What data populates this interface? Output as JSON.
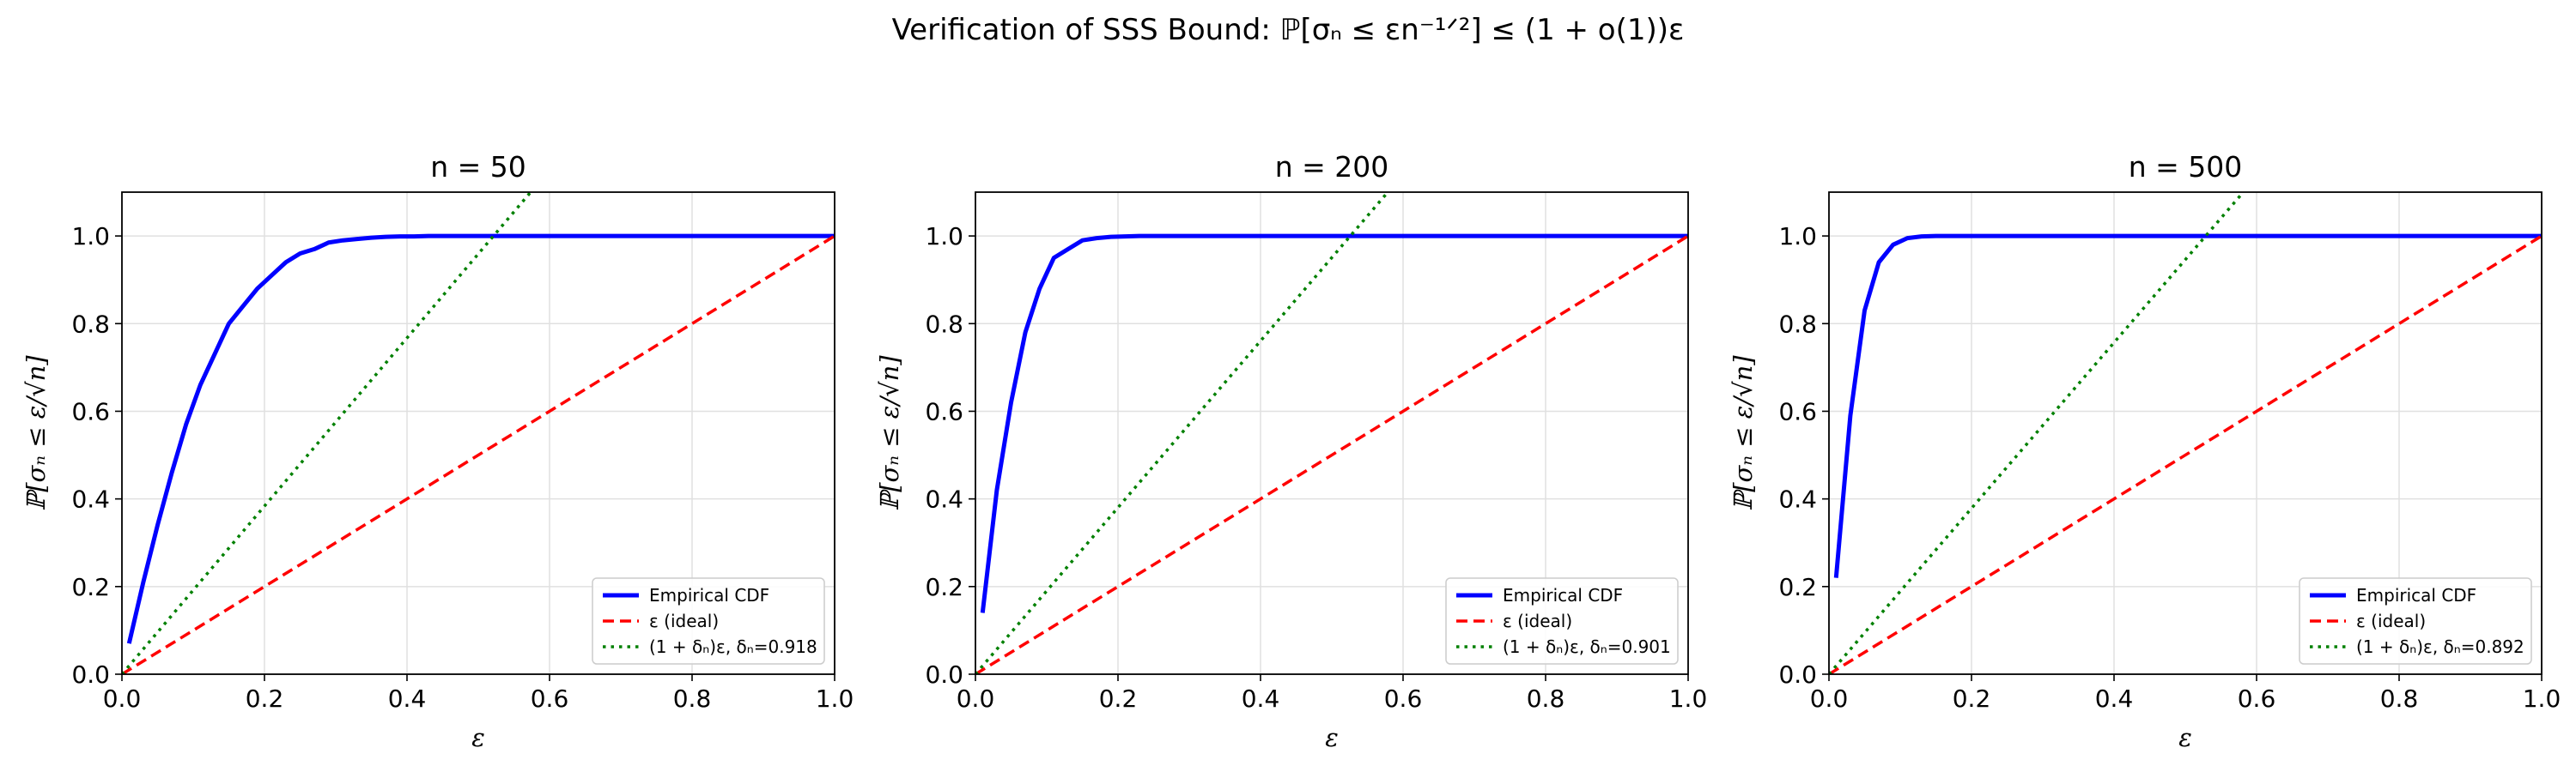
{
  "figure": {
    "title": "Verification of SSS Bound: ℙ[σₙ ≤ εn⁻¹ᐟ²] ≤ (1 + o(1))ε"
  },
  "colors": {
    "empirical": "#0000ff",
    "ideal": "#ff0000",
    "bound": "#008000",
    "grid": "#e0e0e0"
  },
  "chart_data": [
    {
      "type": "line",
      "title": "n = 50",
      "xlabel": "ε",
      "ylabel": "ℙ[σₙ ≤ ε/√n]",
      "xlim": [
        0.0,
        1.0
      ],
      "ylim": [
        0.0,
        1.1
      ],
      "xticks": [
        "0.0",
        "0.2",
        "0.4",
        "0.6",
        "0.8",
        "1.0"
      ],
      "yticks": [
        "0.0",
        "0.2",
        "0.4",
        "0.6",
        "0.8",
        "1.0"
      ],
      "grid": true,
      "legend_position": "lower-right",
      "delta": 0.918,
      "series": [
        {
          "name": "Empirical CDF",
          "style": "solid",
          "x": [
            0.01,
            0.03,
            0.05,
            0.07,
            0.09,
            0.11,
            0.13,
            0.15,
            0.17,
            0.19,
            0.21,
            0.23,
            0.25,
            0.27,
            0.29,
            0.31,
            0.33,
            0.35,
            0.37,
            0.39,
            0.41,
            0.43,
            0.45,
            0.5,
            0.6,
            0.7,
            0.8,
            0.9,
            1.0
          ],
          "y": [
            0.07,
            0.21,
            0.34,
            0.46,
            0.57,
            0.66,
            0.73,
            0.8,
            0.84,
            0.88,
            0.91,
            0.94,
            0.96,
            0.97,
            0.985,
            0.99,
            0.993,
            0.996,
            0.998,
            0.999,
            0.999,
            1.0,
            1.0,
            1.0,
            1.0,
            1.0,
            1.0,
            1.0,
            1.0
          ]
        },
        {
          "name": "ε (ideal)",
          "style": "dashed",
          "x": [
            0.0,
            1.0
          ],
          "y": [
            0.0,
            1.0
          ]
        },
        {
          "name": "(1 + δₙ)ε, δₙ=0.918",
          "style": "dotted",
          "x": [
            0.0,
            0.5735
          ],
          "y": [
            0.0,
            1.1
          ]
        }
      ]
    },
    {
      "type": "line",
      "title": "n = 200",
      "xlabel": "ε",
      "ylabel": "ℙ[σₙ ≤ ε/√n]",
      "xlim": [
        0.0,
        1.0
      ],
      "ylim": [
        0.0,
        1.1
      ],
      "xticks": [
        "0.0",
        "0.2",
        "0.4",
        "0.6",
        "0.8",
        "1.0"
      ],
      "yticks": [
        "0.0",
        "0.2",
        "0.4",
        "0.6",
        "0.8",
        "1.0"
      ],
      "grid": true,
      "legend_position": "lower-right",
      "delta": 0.901,
      "series": [
        {
          "name": "Empirical CDF",
          "style": "solid",
          "x": [
            0.01,
            0.03,
            0.05,
            0.07,
            0.09,
            0.11,
            0.13,
            0.15,
            0.17,
            0.19,
            0.21,
            0.23,
            0.25,
            0.3,
            0.4,
            0.5,
            0.6,
            0.7,
            0.8,
            0.9,
            1.0
          ],
          "y": [
            0.14,
            0.42,
            0.62,
            0.78,
            0.88,
            0.95,
            0.97,
            0.99,
            0.995,
            0.998,
            0.999,
            1.0,
            1.0,
            1.0,
            1.0,
            1.0,
            1.0,
            1.0,
            1.0,
            1.0,
            1.0
          ]
        },
        {
          "name": "ε (ideal)",
          "style": "dashed",
          "x": [
            0.0,
            1.0
          ],
          "y": [
            0.0,
            1.0
          ]
        },
        {
          "name": "(1 + δₙ)ε, δₙ=0.901",
          "style": "dotted",
          "x": [
            0.0,
            0.5786
          ],
          "y": [
            0.0,
            1.1
          ]
        }
      ]
    },
    {
      "type": "line",
      "title": "n = 500",
      "xlabel": "ε",
      "ylabel": "ℙ[σₙ ≤ ε/√n]",
      "xlim": [
        0.0,
        1.0
      ],
      "ylim": [
        0.0,
        1.1
      ],
      "xticks": [
        "0.0",
        "0.2",
        "0.4",
        "0.6",
        "0.8",
        "1.0"
      ],
      "yticks": [
        "0.0",
        "0.2",
        "0.4",
        "0.6",
        "0.8",
        "1.0"
      ],
      "grid": true,
      "legend_position": "lower-right",
      "delta": 0.892,
      "series": [
        {
          "name": "Empirical CDF",
          "style": "solid",
          "x": [
            0.01,
            0.03,
            0.05,
            0.07,
            0.09,
            0.11,
            0.13,
            0.15,
            0.17,
            0.2,
            0.3,
            0.4,
            0.5,
            0.6,
            0.7,
            0.8,
            0.9,
            1.0
          ],
          "y": [
            0.22,
            0.59,
            0.83,
            0.94,
            0.98,
            0.995,
            0.999,
            1.0,
            1.0,
            1.0,
            1.0,
            1.0,
            1.0,
            1.0,
            1.0,
            1.0,
            1.0,
            1.0
          ]
        },
        {
          "name": "ε (ideal)",
          "style": "dashed",
          "x": [
            0.0,
            1.0
          ],
          "y": [
            0.0,
            1.0
          ]
        },
        {
          "name": "(1 + δₙ)ε, δₙ=0.892",
          "style": "dotted",
          "x": [
            0.0,
            0.5814
          ],
          "y": [
            0.0,
            1.1
          ]
        }
      ]
    }
  ]
}
